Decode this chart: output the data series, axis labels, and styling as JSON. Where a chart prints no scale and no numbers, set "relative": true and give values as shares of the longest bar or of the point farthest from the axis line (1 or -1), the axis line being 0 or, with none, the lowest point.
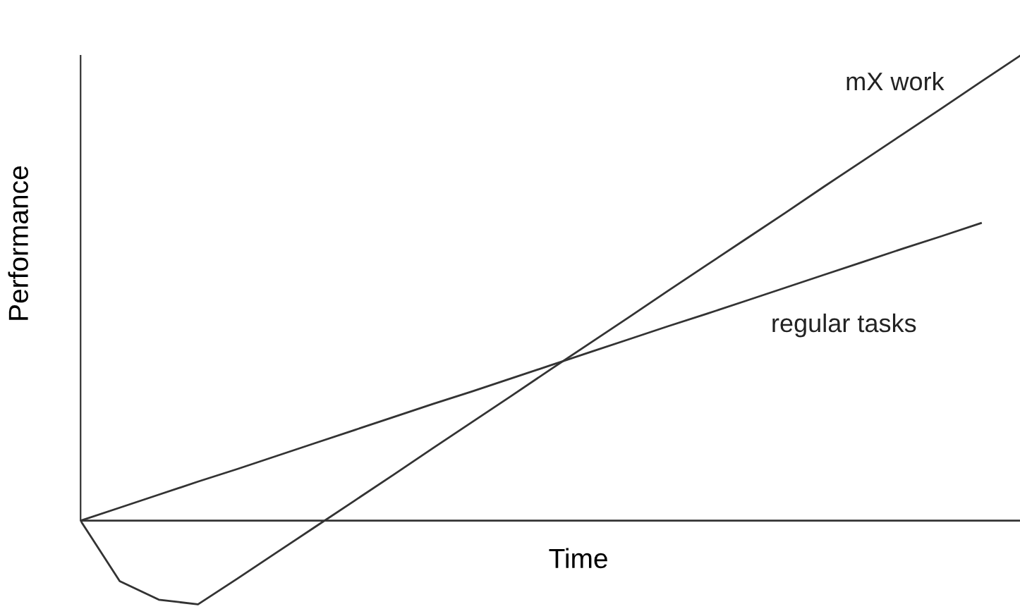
{
  "chart_data": {
    "type": "line",
    "relative": true,
    "xlabel": "Time",
    "ylabel": "Performance",
    "grid": false,
    "legend": false,
    "marker": "none",
    "line_style": "solid",
    "categories": [
      null,
      null,
      null,
      null,
      null,
      null,
      null,
      null,
      null,
      null,
      null,
      null,
      null,
      null,
      null,
      null,
      null,
      null,
      null,
      null,
      null,
      null,
      null,
      null,
      null
    ],
    "series": [
      {
        "name": "mX work",
        "color": "#333333",
        "values": [
          0,
          -0.13,
          -0.17,
          -0.18,
          -0.125,
          -0.069,
          -0.013,
          0.043,
          0.099,
          0.156,
          0.212,
          0.268,
          0.325,
          0.381,
          0.437,
          0.494,
          0.55,
          0.606,
          0.662,
          0.719,
          0.775,
          0.831,
          0.887,
          0.944,
          1
        ]
      },
      {
        "name": "regular tasks",
        "color": "#333333",
        "values": [
          0,
          0.028,
          0.056,
          0.084,
          0.111,
          0.139,
          0.167,
          0.195,
          0.223,
          0.251,
          0.278,
          0.306,
          0.334,
          0.362,
          0.39,
          0.418,
          0.445,
          0.473,
          0.501,
          0.529,
          0.557,
          0.585,
          0.612,
          0.64,
          null
        ]
      }
    ]
  }
}
